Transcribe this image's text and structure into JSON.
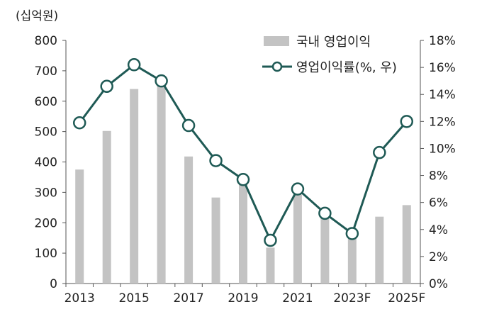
{
  "chart_data": {
    "type": "bar+line",
    "unit_label": "(십억원)",
    "categories": [
      "2013",
      "2014",
      "2015",
      "2016",
      "2017",
      "2018",
      "2019",
      "2020",
      "2021",
      "2022",
      "2023F",
      "2024F",
      "2025F"
    ],
    "x_tick_labels": [
      "2013",
      "",
      "2015",
      "",
      "2017",
      "",
      "2019",
      "",
      "2021",
      "",
      "2023F",
      "",
      "2025F"
    ],
    "series": [
      {
        "name": "국내 영업이익",
        "type": "bar",
        "axis": "left",
        "color": "#c3c3c3",
        "values": [
          375,
          502,
          640,
          655,
          418,
          283,
          330,
          118,
          293,
          245,
          155,
          220,
          258
        ]
      },
      {
        "name": "영업이익률(%, 우)",
        "type": "line",
        "axis": "right",
        "color": "#1f5a55",
        "values": [
          11.9,
          14.6,
          16.2,
          15.0,
          11.7,
          9.1,
          7.7,
          3.2,
          7.0,
          5.2,
          3.7,
          9.7,
          12.0
        ]
      }
    ],
    "y_left": {
      "min": 0,
      "max": 800,
      "ticks": [
        "0",
        "100",
        "200",
        "300",
        "400",
        "500",
        "600",
        "700",
        "800"
      ]
    },
    "y_right": {
      "min": 0,
      "max": 18,
      "ticks": [
        "0%",
        "2%",
        "4%",
        "6%",
        "8%",
        "10%",
        "12%",
        "14%",
        "16%",
        "18%"
      ]
    },
    "grid": false,
    "legend_position": "top-right"
  }
}
